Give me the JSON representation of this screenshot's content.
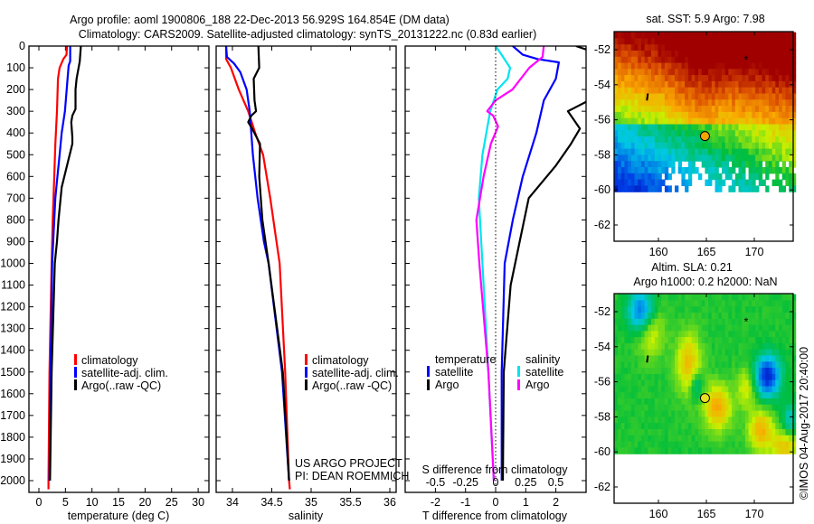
{
  "header": {
    "line1": "Argo profile: aoml 1900806_188 22-Dec-2013 56.929S 164.854E (DM data)",
    "line2": "Climatology: CARS2009. Satellite-adjusted climatology: synTS_20131222.nc (0.83d earlier)"
  },
  "colors": {
    "climatology": "#ff0000",
    "satellite": "#0000ff",
    "argo": "#000000",
    "sal_satellite": "#00e5ee",
    "sal_argo": "#ff00ff"
  },
  "chart_data": [
    {
      "type": "line",
      "title": "",
      "xlabel": "temperature (deg C)",
      "ylabel": "",
      "xlim": [
        -2,
        32
      ],
      "ylim": [
        2050,
        0
      ],
      "xticks": [
        "0",
        "5",
        "10",
        "15",
        "20",
        "25",
        "30"
      ],
      "xtick_values": [
        0,
        5,
        10,
        15,
        20,
        25,
        30
      ],
      "yticks": [
        "0",
        "100",
        "200",
        "300",
        "400",
        "500",
        "600",
        "700",
        "800",
        "900",
        "1000",
        "1100",
        "1200",
        "1300",
        "1400",
        "1500",
        "1600",
        "1700",
        "1800",
        "1900",
        "2000"
      ],
      "ytick_values": [
        0,
        100,
        200,
        300,
        400,
        500,
        600,
        700,
        800,
        900,
        1000,
        1100,
        1200,
        1300,
        1400,
        1500,
        1600,
        1700,
        1800,
        1900,
        2000
      ],
      "legend": [
        "climatology",
        "satellite-adj. clim.",
        "Argo(..raw -QC)"
      ],
      "series": [
        {
          "name": "climatology",
          "color": "#ff0000",
          "depth": [
            0,
            40,
            60,
            100,
            150,
            300,
            450,
            600,
            800,
            1000,
            1500,
            2000,
            2040
          ],
          "values": [
            5.3,
            5.2,
            4.6,
            3.9,
            3.6,
            3.4,
            3.1,
            2.9,
            2.6,
            2.4,
            2.0,
            1.8,
            1.8
          ]
        },
        {
          "name": "satellite-adj. clim.",
          "color": "#0000ff",
          "depth": [
            0,
            70,
            90,
            150,
            300,
            400,
            500,
            600,
            700,
            850,
            1000,
            1500,
            2000
          ],
          "values": [
            5.9,
            5.9,
            5.6,
            5.4,
            4.9,
            4.3,
            3.9,
            3.5,
            3.1,
            2.8,
            2.5,
            2.2,
            2.0
          ]
        },
        {
          "name": "Argo(..raw -QC)",
          "color": "#000000",
          "depth": [
            0,
            70,
            150,
            200,
            290,
            320,
            350,
            420,
            450,
            550,
            650,
            800,
            900,
            1000,
            1500,
            2000
          ],
          "values": [
            7.9,
            7.7,
            7.1,
            6.9,
            6.9,
            6.3,
            6.1,
            6.3,
            6.3,
            5.3,
            4.3,
            3.7,
            3.4,
            3.0,
            2.4,
            2.1
          ]
        }
      ]
    },
    {
      "type": "line",
      "xlabel": "salinity",
      "xlim": [
        33.78,
        36.08
      ],
      "ylim": [
        2050,
        0
      ],
      "xticks": [
        "34",
        "34.5",
        "35",
        "35.5",
        "36"
      ],
      "xtick_values": [
        34,
        34.5,
        35,
        35.5,
        36
      ],
      "legend": [
        "climatology",
        "satellite-adj. clim.",
        "Argo(..raw -QC)"
      ],
      "annotation": [
        "US ARGO PROJECT",
        "PI: DEAN ROEMMICH"
      ],
      "series": [
        {
          "name": "climatology",
          "color": "#ff0000",
          "depth": [
            0,
            60,
            100,
            200,
            300,
            400,
            500,
            700,
            900,
            1000,
            1500,
            2000,
            2040
          ],
          "values": [
            33.92,
            33.92,
            33.98,
            34.08,
            34.2,
            34.29,
            34.39,
            34.48,
            34.56,
            34.6,
            34.67,
            34.72,
            34.73
          ]
        },
        {
          "name": "satellite-adj. clim.",
          "color": "#0000ff",
          "depth": [
            0,
            50,
            80,
            120,
            200,
            300,
            500,
            700,
            900,
            1000,
            1500,
            2000
          ],
          "values": [
            33.92,
            33.93,
            34.02,
            34.1,
            34.18,
            34.22,
            34.26,
            34.32,
            34.4,
            34.46,
            34.63,
            34.72
          ]
        },
        {
          "name": "Argo(..raw -QC)",
          "color": "#000000",
          "depth": [
            0,
            100,
            150,
            250,
            300,
            320,
            350,
            380,
            450,
            600,
            800,
            1000,
            1500,
            2000
          ],
          "values": [
            34.33,
            34.34,
            34.27,
            34.28,
            34.3,
            34.24,
            34.2,
            34.25,
            34.35,
            34.34,
            34.38,
            34.46,
            34.64,
            34.72
          ]
        }
      ]
    },
    {
      "type": "line",
      "xlabel": "T difference from climatology",
      "xlabel2": "S difference from climatology",
      "xlim": [
        -3,
        3
      ],
      "xlim_s": [
        -0.75,
        0.75
      ],
      "xticks": [
        "-2",
        "-1",
        "0",
        "1",
        "2"
      ],
      "xtick_values": [
        -2,
        -1,
        0,
        1,
        2
      ],
      "xticks_s": [
        "-0.5",
        "-0.25",
        "0",
        "0.25",
        "0.5"
      ],
      "xtick_values_s": [
        -0.5,
        -0.25,
        0,
        0.25,
        0.5
      ],
      "legend": {
        "temperature": "temperature",
        "salinity": "salinity",
        "items_t": [
          "satellite",
          "Argo"
        ],
        "items_s": [
          "satellite",
          "Argo"
        ]
      },
      "series": [
        {
          "name": "T satellite",
          "axis": "T",
          "color": "#0000ff",
          "depth": [
            0,
            40,
            60,
            75,
            150,
            250,
            400,
            600,
            800,
            1000,
            1500,
            2000
          ],
          "values": [
            0.57,
            0.9,
            1.4,
            2.1,
            2.0,
            1.6,
            1.35,
            0.9,
            0.57,
            0.3,
            0.2,
            0.2
          ]
        },
        {
          "name": "T Argo",
          "axis": "T",
          "color": "#000000",
          "depth": [
            0,
            20,
            250,
            300,
            380,
            450,
            550,
            700,
            900,
            1100,
            1500,
            2000
          ],
          "values": [
            2.67,
            3.1,
            3.1,
            2.4,
            2.8,
            2.5,
            2.0,
            1.1,
            0.8,
            0.5,
            0.27,
            0.24
          ]
        },
        {
          "name": "S satellite",
          "axis": "S",
          "color": "#00e5ee",
          "depth": [
            0,
            40,
            100,
            150,
            200,
            300,
            500,
            700,
            1000,
            1500,
            2000
          ],
          "values": [
            0.0,
            0.05,
            0.12,
            0.1,
            0.015,
            -0.045,
            -0.11,
            -0.14,
            -0.11,
            -0.06,
            -0.015
          ]
        },
        {
          "name": "S Argo",
          "axis": "S",
          "color": "#ff00ff",
          "depth": [
            0,
            50,
            100,
            200,
            250,
            300,
            320,
            370,
            450,
            600,
            800,
            1000,
            1500,
            2000
          ],
          "values": [
            0.4,
            0.39,
            0.28,
            0.14,
            0.0,
            -0.07,
            -0.02,
            0.02,
            -0.04,
            -0.1,
            -0.16,
            -0.135,
            -0.06,
            -0.015
          ]
        }
      ]
    },
    {
      "type": "heatmap",
      "title": "sat. SST: 5.9 Argo: 7.98",
      "xticks": [
        "160",
        "165",
        "170"
      ],
      "xtick_values": [
        160,
        165,
        170
      ],
      "yticks": [
        "-52",
        "-54",
        "-56",
        "-58",
        "-60",
        "-62"
      ],
      "ytick_values": [
        -52,
        -54,
        -56,
        -58,
        -60,
        -62
      ],
      "xlim": [
        155.4,
        174.1
      ],
      "ylim": [
        -62.6,
        -51
      ],
      "argo_position": [
        164.854,
        -56.929
      ]
    },
    {
      "type": "heatmap",
      "title": "Altim. SLA: 0.21",
      "subtitle": "Argo h1000: 0.2 h2000: NaN",
      "xticks": [
        "160",
        "165",
        "170"
      ],
      "xtick_values": [
        160,
        165,
        170
      ],
      "yticks": [
        "-52",
        "-54",
        "-56",
        "-58",
        "-60",
        "-62"
      ],
      "ytick_values": [
        -52,
        -54,
        -56,
        -58,
        -60,
        -62
      ],
      "xlim": [
        155.4,
        174.1
      ],
      "ylim": [
        -62.6,
        -51
      ],
      "argo_position": [
        164.854,
        -56.929
      ]
    }
  ],
  "credit": "©IMOS 04-Aug-2017 20:40:00"
}
